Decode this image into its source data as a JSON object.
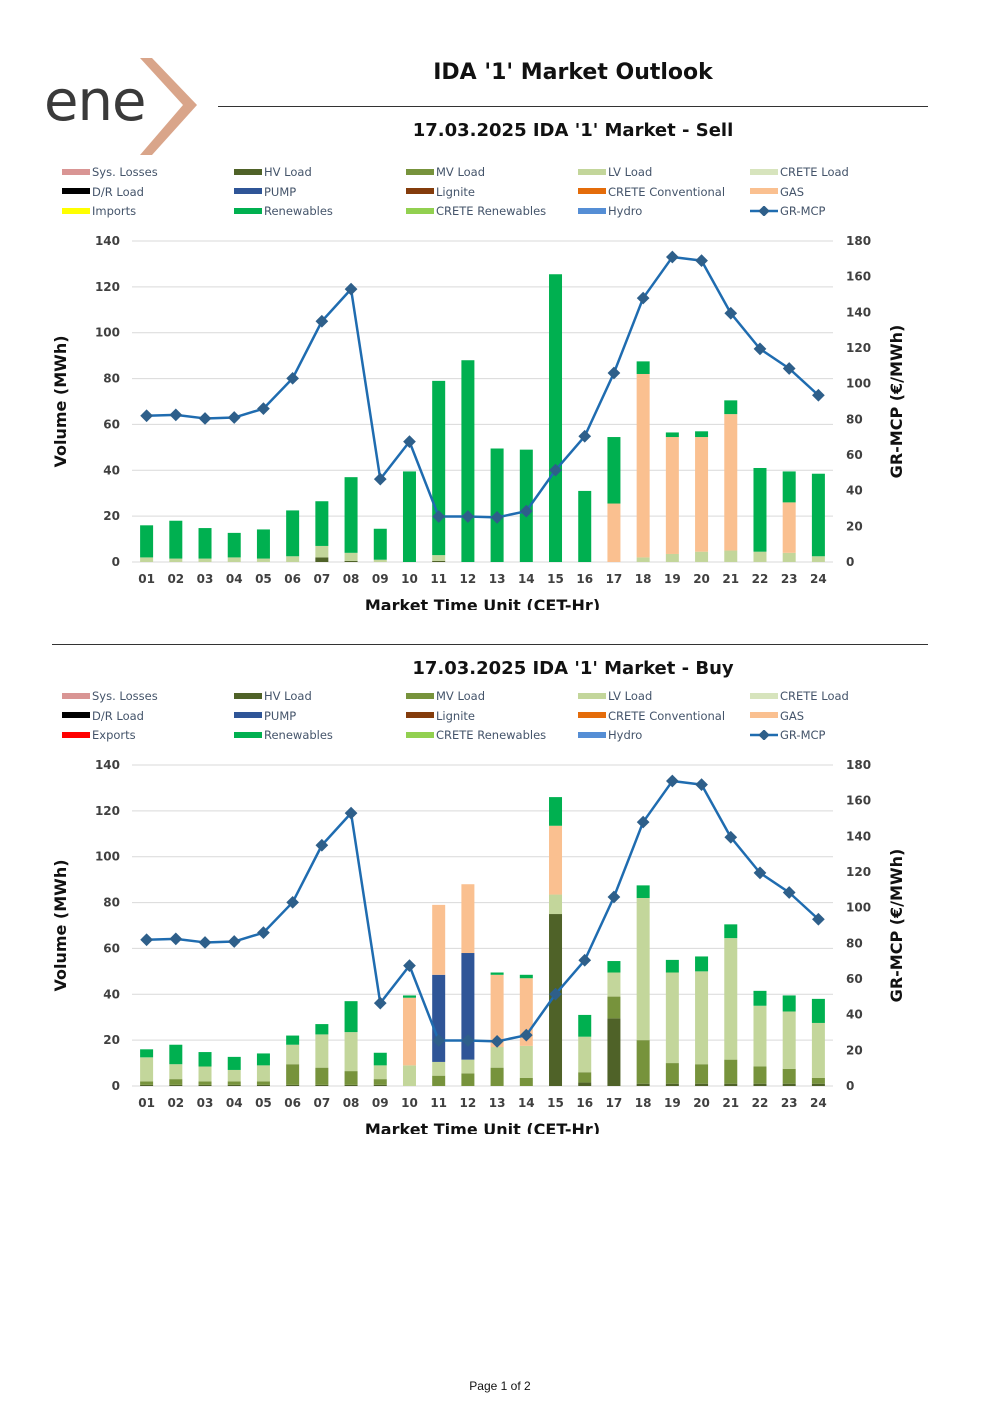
{
  "logo": {
    "text": "ene",
    "brand": "enex"
  },
  "page_title": "IDA '1' Market Outlook",
  "footer": "Page 1 of 2",
  "colors": {
    "sys_losses": "#d99594",
    "hv_load": "#4f6228",
    "mv_load": "#77933c",
    "lv_load": "#c3d69b",
    "crete_load": "#d7e4bd",
    "dr_load": "#000000",
    "pump": "#2f5597",
    "lignite": "#843c0c",
    "crete_conventional": "#e46c0a",
    "gas": "#fac090",
    "imports": "#ffff00",
    "exports": "#ff0000",
    "renewables": "#00b050",
    "crete_renewables": "#92d050",
    "hydro": "#558ed5",
    "mcp_line": "#1f6cb0",
    "mcp_marker": "#2e5f8a",
    "logo_chevron": "#d9a58a"
  },
  "chart_data": [
    {
      "type": "bar",
      "title": "17.03.2025  IDA '1' Market - Sell",
      "xlabel": "Market Time Unit (CET-Hr)",
      "ylabel": "Volume (MWh)",
      "y2label": "GR-MCP (€/MWh)",
      "ylim": [
        0,
        140
      ],
      "yticks": [
        0,
        20,
        40,
        60,
        80,
        100,
        120,
        140
      ],
      "y2lim": [
        0,
        180
      ],
      "y2ticks": [
        0,
        20,
        40,
        60,
        80,
        100,
        120,
        140,
        160,
        180
      ],
      "stacked": true,
      "grid": true,
      "legend": [
        {
          "label": "Sys. Losses",
          "color": "#d99594"
        },
        {
          "label": "HV Load",
          "color": "#4f6228"
        },
        {
          "label": "MV Load",
          "color": "#77933c"
        },
        {
          "label": "LV Load",
          "color": "#c3d69b"
        },
        {
          "label": "CRETE Load",
          "color": "#d7e4bd"
        },
        {
          "label": "D/R Load",
          "color": "#000000"
        },
        {
          "label": "PUMP",
          "color": "#2f5597"
        },
        {
          "label": "Lignite",
          "color": "#843c0c"
        },
        {
          "label": "CRETE Conventional",
          "color": "#e46c0a"
        },
        {
          "label": "GAS",
          "color": "#fac090"
        },
        {
          "label": "Imports",
          "color": "#ffff00"
        },
        {
          "label": "Renewables",
          "color": "#00b050"
        },
        {
          "label": "CRETE Renewables",
          "color": "#92d050"
        },
        {
          "label": "Hydro",
          "color": "#558ed5"
        },
        {
          "label": "GR-MCP",
          "color": "#1f6cb0",
          "line": true
        }
      ],
      "categories": [
        "01",
        "02",
        "03",
        "04",
        "05",
        "06",
        "07",
        "08",
        "09",
        "10",
        "11",
        "12",
        "13",
        "14",
        "15",
        "16",
        "17",
        "18",
        "19",
        "20",
        "21",
        "22",
        "23",
        "24"
      ],
      "series": [
        {
          "name": "HV Load",
          "color": "#4f6228",
          "values": [
            0,
            0,
            0,
            0,
            0,
            0,
            2,
            0.5,
            0,
            0,
            0.5,
            0,
            0,
            0,
            0,
            0,
            0,
            0,
            0,
            0,
            0,
            0,
            0,
            0
          ]
        },
        {
          "name": "MV Load",
          "color": "#77933c",
          "values": [
            0,
            0,
            0,
            0,
            0,
            0,
            0,
            0,
            0,
            0,
            0,
            0,
            0,
            0,
            0,
            0,
            0,
            0,
            0,
            0,
            0,
            0,
            0,
            0
          ]
        },
        {
          "name": "LV Load",
          "color": "#c3d69b",
          "values": [
            2,
            1.5,
            1.5,
            2,
            1.5,
            2.5,
            5,
            3.5,
            1,
            0,
            2.5,
            0,
            0,
            0,
            0,
            0,
            0,
            2,
            3.5,
            4.5,
            5,
            4.5,
            4,
            2.5
          ]
        },
        {
          "name": "GAS",
          "color": "#fac090",
          "values": [
            0,
            0,
            0,
            0,
            0,
            0,
            0,
            0,
            0,
            0,
            0,
            0,
            0,
            0,
            0,
            0,
            25.5,
            80,
            51,
            50,
            59.5,
            0,
            22,
            0
          ]
        },
        {
          "name": "Renewables",
          "color": "#00b050",
          "values": [
            14,
            16.5,
            13.3,
            10.7,
            12.7,
            20,
            19.5,
            33,
            13.5,
            39.5,
            76,
            88,
            49.5,
            49,
            125.5,
            31,
            29,
            5.5,
            2,
            2.5,
            6,
            36.5,
            13.5,
            36
          ]
        }
      ],
      "line": {
        "name": "GR-MCP",
        "axis": "y2",
        "color": "#1f6cb0",
        "values": [
          82,
          82.5,
          80.5,
          81,
          86,
          103,
          135,
          153,
          46.5,
          67.5,
          25.5,
          25.5,
          25,
          28.5,
          51.5,
          70.5,
          106,
          148,
          171,
          169,
          139.5,
          119.5,
          108.5,
          93.5
        ]
      }
    },
    {
      "type": "bar",
      "title": "17.03.2025  IDA '1' Market - Buy",
      "xlabel": "Market Time Unit (CET-Hr)",
      "ylabel": "Volume (MWh)",
      "y2label": "GR-MCP (€/MWh)",
      "ylim": [
        0,
        140
      ],
      "yticks": [
        0,
        20,
        40,
        60,
        80,
        100,
        120,
        140
      ],
      "y2lim": [
        0,
        180
      ],
      "y2ticks": [
        0,
        20,
        40,
        60,
        80,
        100,
        120,
        140,
        160,
        180
      ],
      "stacked": true,
      "grid": true,
      "legend": [
        {
          "label": "Sys. Losses",
          "color": "#d99594"
        },
        {
          "label": "HV Load",
          "color": "#4f6228"
        },
        {
          "label": "MV Load",
          "color": "#77933c"
        },
        {
          "label": "LV Load",
          "color": "#c3d69b"
        },
        {
          "label": "CRETE Load",
          "color": "#d7e4bd"
        },
        {
          "label": "D/R Load",
          "color": "#000000"
        },
        {
          "label": "PUMP",
          "color": "#2f5597"
        },
        {
          "label": "Lignite",
          "color": "#843c0c"
        },
        {
          "label": "CRETE Conventional",
          "color": "#e46c0a"
        },
        {
          "label": "GAS",
          "color": "#fac090"
        },
        {
          "label": "Exports",
          "color": "#ff0000"
        },
        {
          "label": "Renewables",
          "color": "#00b050"
        },
        {
          "label": "CRETE Renewables",
          "color": "#92d050"
        },
        {
          "label": "Hydro",
          "color": "#558ed5"
        },
        {
          "label": "GR-MCP",
          "color": "#1f6cb0",
          "line": true
        }
      ],
      "categories": [
        "01",
        "02",
        "03",
        "04",
        "05",
        "06",
        "07",
        "08",
        "09",
        "10",
        "11",
        "12",
        "13",
        "14",
        "15",
        "16",
        "17",
        "18",
        "19",
        "20",
        "21",
        "22",
        "23",
        "24"
      ],
      "series": [
        {
          "name": "HV Load",
          "color": "#4f6228",
          "values": [
            0.5,
            0.5,
            0.5,
            0.5,
            0.5,
            0.5,
            0.5,
            0.5,
            0.5,
            0,
            0,
            0,
            0,
            0,
            75,
            1.5,
            29.5,
            1,
            1,
            1,
            1,
            1,
            1,
            1
          ]
        },
        {
          "name": "MV Load",
          "color": "#77933c",
          "values": [
            1.5,
            2.5,
            1.5,
            1.5,
            1.5,
            9,
            7.5,
            6,
            2.5,
            0,
            4.5,
            5.5,
            8,
            3.5,
            0,
            4.5,
            9.5,
            19,
            9,
            8.5,
            10.5,
            7.5,
            6.5,
            2.5
          ]
        },
        {
          "name": "LV Load",
          "color": "#c3d69b",
          "values": [
            10.5,
            6.5,
            6.5,
            5,
            7,
            8.5,
            14.5,
            17,
            6,
            9,
            6,
            6,
            9,
            14,
            8.5,
            15.5,
            10.5,
            62,
            39.5,
            40.5,
            53,
            26.5,
            25,
            24
          ]
        },
        {
          "name": "PUMP",
          "color": "#2f5597",
          "values": [
            0,
            0,
            0,
            0,
            0,
            0,
            0,
            0,
            0,
            0,
            38,
            46.5,
            0,
            0,
            0,
            0,
            0,
            0,
            0,
            0,
            0,
            0,
            0,
            0
          ]
        },
        {
          "name": "GAS",
          "color": "#fac090",
          "values": [
            0,
            0,
            0,
            0,
            0,
            0,
            0,
            0,
            0,
            29.5,
            30.5,
            30,
            31.5,
            29.5,
            30,
            0,
            0,
            0,
            0,
            0,
            0,
            0,
            0,
            0
          ]
        },
        {
          "name": "Renewables",
          "color": "#00b050",
          "values": [
            3.5,
            8.5,
            6.3,
            5.7,
            5.2,
            4,
            4.5,
            13.5,
            5.5,
            1,
            0,
            0,
            1,
            1.5,
            12.5,
            9.5,
            5,
            5.5,
            5.5,
            6.5,
            6,
            6.5,
            7,
            10.5
          ]
        }
      ],
      "line": {
        "name": "GR-MCP",
        "axis": "y2",
        "color": "#1f6cb0",
        "values": [
          82,
          82.5,
          80.5,
          81,
          86,
          103,
          135,
          153,
          46.5,
          67.5,
          25.5,
          25.5,
          25,
          28.5,
          51.5,
          70.5,
          106,
          148,
          171,
          169,
          139.5,
          119.5,
          108.5,
          93.5
        ]
      }
    }
  ]
}
